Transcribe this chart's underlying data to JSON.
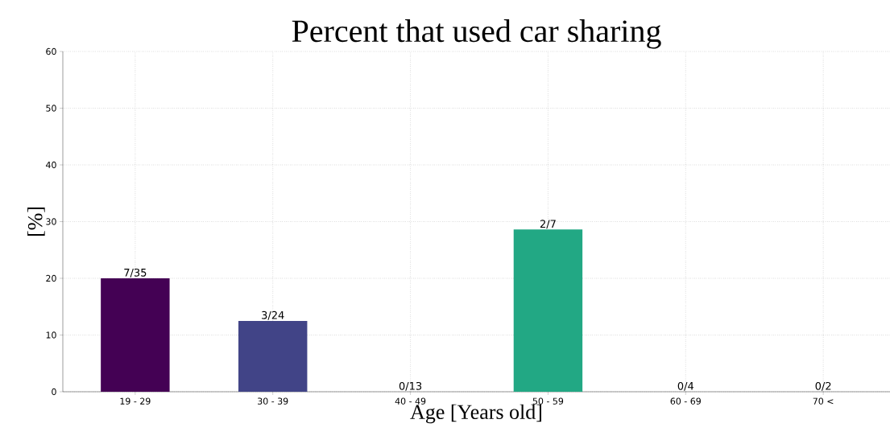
{
  "chart_data": {
    "type": "bar",
    "title": "Percent that used car sharing",
    "xlabel": "Age [Years old]",
    "ylabel": "[%]",
    "categories": [
      "19 - 29",
      "30 - 39",
      "40 - 49",
      "50 - 59",
      "60 - 69",
      "70 <"
    ],
    "values": [
      20,
      12.5,
      0,
      28.6,
      0,
      0
    ],
    "colors": [
      "#440154",
      "#414487",
      "#2a788e",
      "#22a884",
      "#7ad151",
      "#fde725"
    ],
    "value_labels": [
      "7/35",
      "3/24",
      "0/13",
      "2/7",
      "0/4",
      "0/2"
    ],
    "ylim": [
      0,
      60
    ],
    "yticks": [
      0,
      10,
      20,
      30,
      40,
      50,
      60
    ],
    "grid": true
  }
}
